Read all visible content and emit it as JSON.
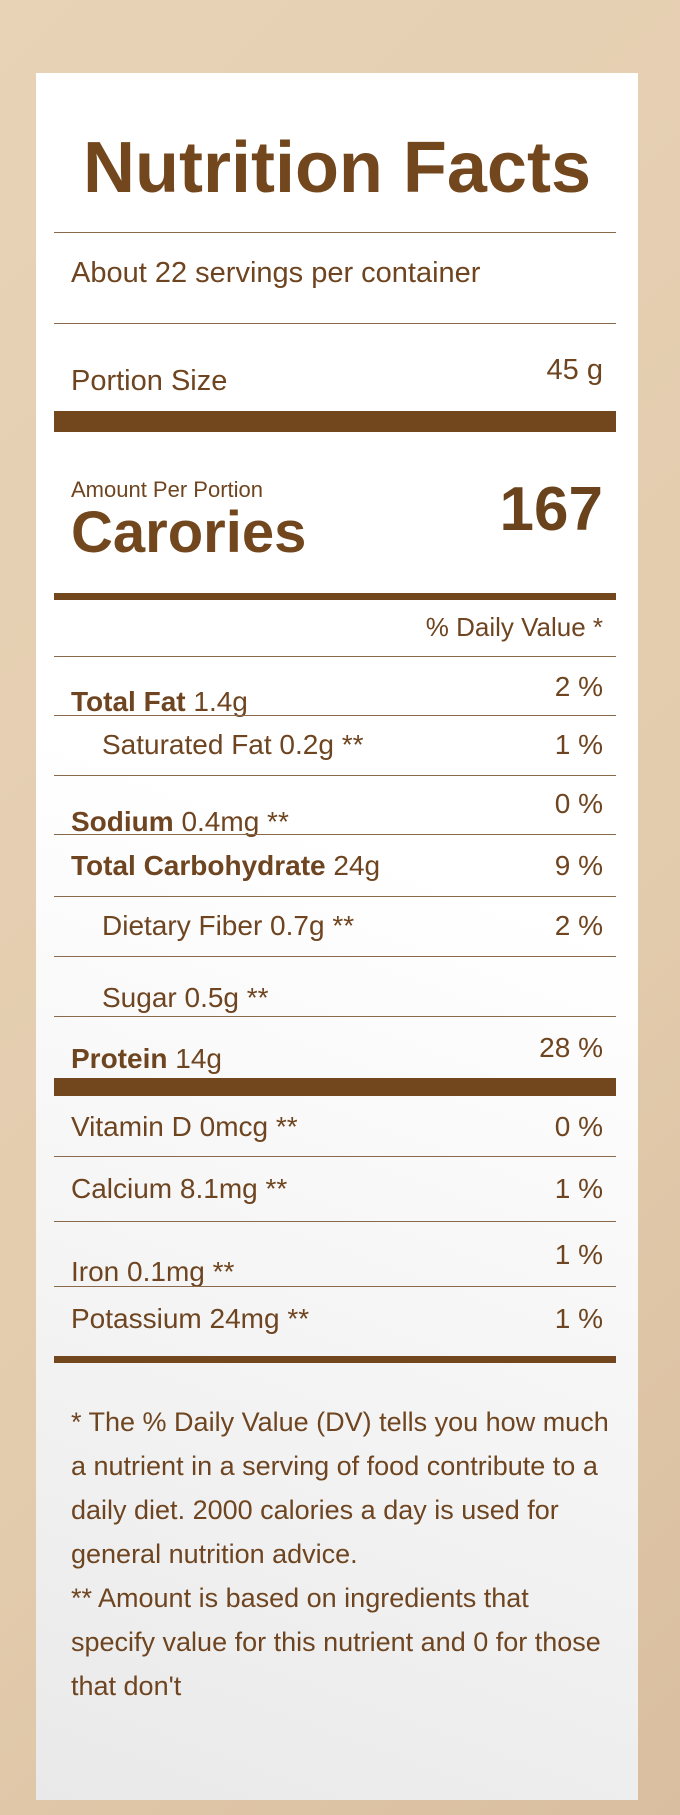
{
  "title": "Nutrition Facts",
  "servings": "About 22 servings per container",
  "portion": {
    "label": "Portion Size",
    "value": "45 g"
  },
  "calories": {
    "amount_label": "Amount Per Portion",
    "label": "Carories",
    "value": "167"
  },
  "dv_header": "% Daily Value *",
  "nutrients": [
    {
      "name": "Total Fat",
      "amount": " 1.4g",
      "pct": "2 %"
    },
    {
      "name": "Saturated Fat 0.2g **",
      "pct": "1 %"
    },
    {
      "name": "Sodium",
      "amount": " 0.4mg **",
      "pct": "0 %"
    },
    {
      "name": "Total Carbohydrate",
      "amount": " 24g",
      "pct": "9 %"
    },
    {
      "name": "Dietary Fiber 0.7g **",
      "pct": "2 %"
    },
    {
      "name": "Sugar 0.5g **",
      "pct": ""
    },
    {
      "name": "Protein",
      "amount": " 14g",
      "pct": "28 %"
    },
    {
      "name": "Vitamin D 0mcg **",
      "pct": "0 %"
    },
    {
      "name": "Calcium 8.1mg **",
      "pct": "1 %"
    },
    {
      "name": "Iron 0.1mg **",
      "pct": "1 %"
    },
    {
      "name": "Potassium 24mg **",
      "pct": "1 %"
    }
  ],
  "footnotes": [
    "* The % Daily Value (DV) tells you how much a nutrient in a serving of food contribute to a daily diet. 2000 calories a day is used for general nutrition advice.",
    "** Amount is based on ingredients that specify value for this nutrient and 0 for those that don't"
  ],
  "colors": {
    "brand": "#72471e",
    "background": "#e6cfb2"
  }
}
